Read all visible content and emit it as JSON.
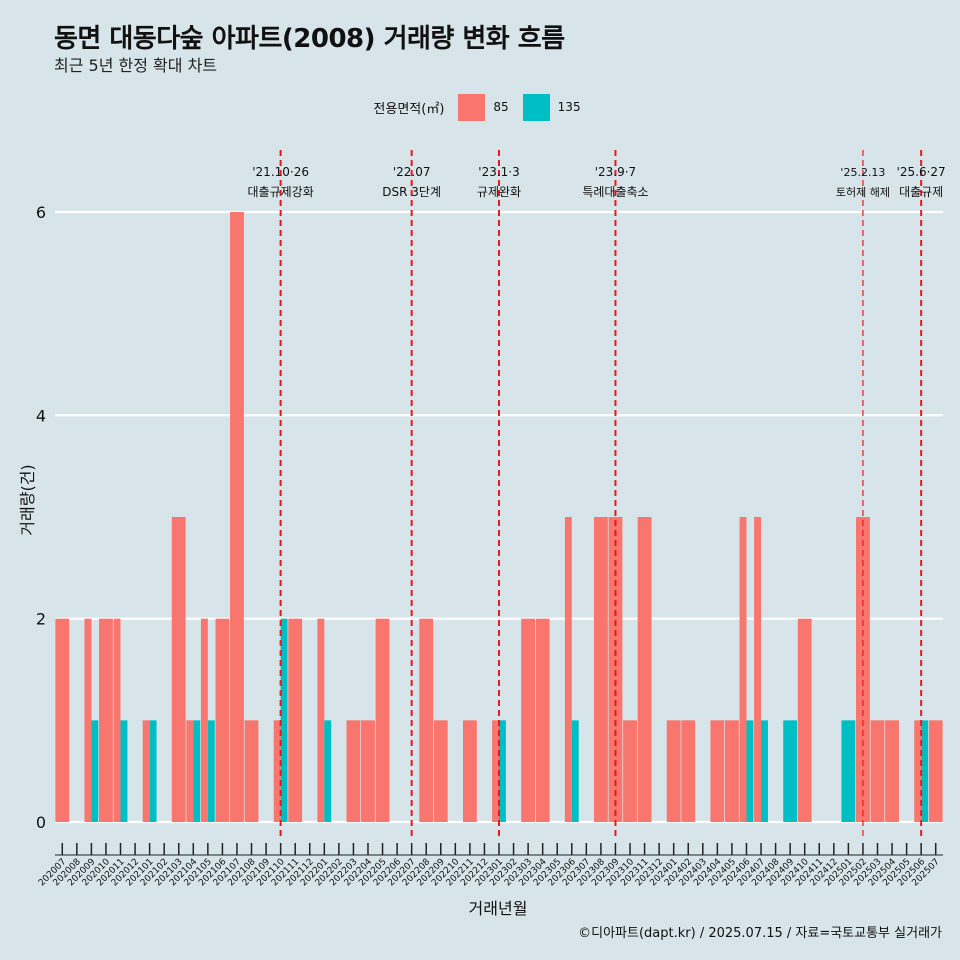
{
  "chart_data": {
    "type": "bar",
    "title": "동면 대동다숲 아파트(2008) 거래량 변화 흐름",
    "subtitle": "최근 5년 한정 확대 차트",
    "xlabel": "거래년월",
    "ylabel": "거래량(건)",
    "ylim": [
      0,
      6
    ],
    "yticks": [
      0,
      2,
      4,
      6
    ],
    "grid": "horizontal",
    "legend": {
      "title": "전용면적(㎡)",
      "position": "top",
      "entries": [
        "85",
        "135"
      ]
    },
    "colors": {
      "85": "#f8766d",
      "135": "#00bfc4"
    },
    "categories": [
      "202007",
      "202008",
      "202009",
      "202010",
      "202011",
      "202012",
      "202101",
      "202102",
      "202103",
      "202104",
      "202105",
      "202106",
      "202107",
      "202108",
      "202109",
      "202110",
      "202111",
      "202112",
      "202201",
      "202202",
      "202203",
      "202204",
      "202205",
      "202206",
      "202207",
      "202208",
      "202209",
      "202210",
      "202211",
      "202212",
      "202301",
      "202302",
      "202303",
      "202304",
      "202305",
      "202306",
      "202307",
      "202308",
      "202309",
      "202310",
      "202311",
      "202312",
      "202401",
      "202402",
      "202403",
      "202404",
      "202405",
      "202406",
      "202407",
      "202408",
      "202409",
      "202410",
      "202411",
      "202412",
      "202501",
      "202502",
      "202503",
      "202504",
      "202505",
      "202506",
      "202507"
    ],
    "series": [
      {
        "name": "85",
        "values": [
          2,
          0,
          2,
          2,
          2,
          0,
          1,
          0,
          3,
          1,
          2,
          2,
          6,
          1,
          0,
          1,
          2,
          0,
          2,
          0,
          1,
          1,
          2,
          0,
          0,
          2,
          1,
          0,
          1,
          0,
          1,
          0,
          2,
          2,
          0,
          3,
          0,
          3,
          3,
          1,
          3,
          0,
          1,
          1,
          0,
          1,
          1,
          3,
          3,
          0,
          0,
          2,
          0,
          0,
          0,
          3,
          1,
          1,
          0,
          1,
          1
        ]
      },
      {
        "name": "135",
        "values": [
          0,
          0,
          1,
          0,
          1,
          0,
          1,
          0,
          0,
          1,
          1,
          0,
          0,
          0,
          0,
          2,
          0,
          0,
          1,
          0,
          0,
          0,
          0,
          0,
          0,
          0,
          0,
          0,
          0,
          0,
          1,
          0,
          0,
          0,
          0,
          1,
          0,
          0,
          0,
          0,
          0,
          0,
          0,
          0,
          0,
          0,
          0,
          1,
          1,
          0,
          1,
          0,
          0,
          0,
          1,
          0,
          0,
          0,
          0,
          1,
          0
        ]
      }
    ],
    "events": [
      {
        "date": "'21.10·26",
        "label": "대출규제강화",
        "month": "202110"
      },
      {
        "date": "'22.07",
        "label": "DSR 3단계",
        "month": "202207"
      },
      {
        "date": "'23.1·3",
        "label": "규제완화",
        "month": "202301"
      },
      {
        "date": "'23.9·7",
        "label": "특례대출축소",
        "month": "202309"
      },
      {
        "date": "'25.2.13",
        "label": "토허제 해제",
        "month": "202502"
      },
      {
        "date": "'25.6·27",
        "label": "대출규제",
        "month": "202506"
      }
    ],
    "caption": "©디아파트(dapt.kr) / 2025.07.15 / 자료=국토교통부 실거래가"
  }
}
